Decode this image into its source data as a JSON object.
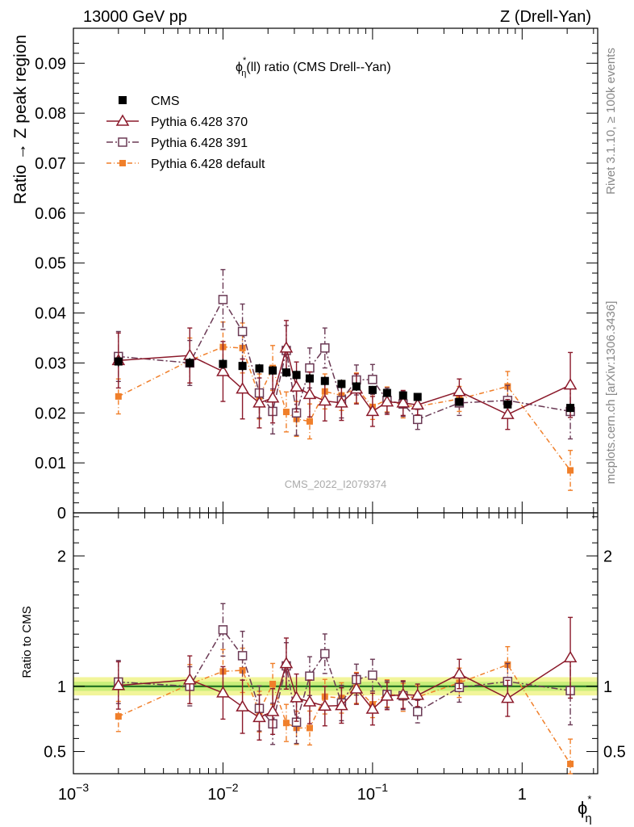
{
  "chart_data": {
    "type": "scatter",
    "header_left": "13000 GeV pp",
    "header_right": "Z (Drell-Yan)",
    "title": "ϕ*η(ll) ratio (CMS Drell--Yan)",
    "title_parts": {
      "phi": "ϕ",
      "sup": "*",
      "sub": "η",
      "rest": "(ll) ratio (CMS Drell--Yan)"
    },
    "ylabel": "Ratio → Z peak region",
    "ratio_ylabel": "Ratio to CMS",
    "xlabel": "ϕ*η",
    "xlabel_parts": {
      "phi": "ϕ",
      "sup": "*",
      "sub": "η"
    },
    "side_text_1": "Rivet 3.1.10, ≥ 100k events",
    "side_text_2": "mcplots.cern.ch [arXiv:1306.3436]",
    "watermark": "CMS_2022_I2079374",
    "xscale": "log",
    "xlim": [
      0.001,
      3.2
    ],
    "ylim": [
      0,
      0.097
    ],
    "ratio_ylim": [
      0.33,
      2.33
    ],
    "main_yticks": [
      {
        "v": 0.01,
        "label": "0.01"
      },
      {
        "v": 0.02,
        "label": "0.02"
      },
      {
        "v": 0.03,
        "label": "0.03"
      },
      {
        "v": 0.04,
        "label": "0.04"
      },
      {
        "v": 0.05,
        "label": "0.05"
      },
      {
        "v": 0.06,
        "label": "0.06"
      },
      {
        "v": 0.07,
        "label": "0.07"
      },
      {
        "v": 0.08,
        "label": "0.08"
      },
      {
        "v": 0.09,
        "label": "0.09"
      }
    ],
    "ratio_yticks": [
      {
        "v": 0.5,
        "label": "0.5"
      },
      {
        "v": 1,
        "label": "1"
      },
      {
        "v": 2,
        "label": "2"
      }
    ],
    "xticks": [
      {
        "v": 0.001,
        "base": "10",
        "exp": "−3"
      },
      {
        "v": 0.01,
        "base": "10",
        "exp": "−2"
      },
      {
        "v": 0.1,
        "base": "10",
        "exp": "−1"
      },
      {
        "v": 1,
        "base": "1",
        "exp": ""
      }
    ],
    "x": [
      0.002,
      0.006,
      0.01,
      0.0135,
      0.0175,
      0.0215,
      0.0265,
      0.031,
      0.038,
      0.048,
      0.062,
      0.078,
      0.1,
      0.125,
      0.16,
      0.2,
      0.38,
      0.8,
      2.1
    ],
    "x_err": [
      [
        0.001,
        0.004
      ],
      [
        0.004,
        0.008
      ],
      [
        0.008,
        0.012
      ],
      [
        0.012,
        0.015
      ],
      [
        0.015,
        0.02
      ],
      [
        0.02,
        0.023
      ],
      [
        0.023,
        0.029
      ],
      [
        0.029,
        0.034
      ],
      [
        0.034,
        0.043
      ],
      [
        0.043,
        0.054
      ],
      [
        0.054,
        0.07
      ],
      [
        0.07,
        0.087
      ],
      [
        0.087,
        0.114
      ],
      [
        0.114,
        0.14
      ],
      [
        0.14,
        0.18
      ],
      [
        0.18,
        0.25
      ],
      [
        0.25,
        0.6
      ],
      [
        0.6,
        1.3
      ],
      [
        1.3,
        3.2
      ]
    ],
    "data": {
      "name": "CMS",
      "values": [
        0.0303,
        0.03,
        0.0298,
        0.0294,
        0.0289,
        0.0285,
        0.0281,
        0.0276,
        0.0269,
        0.0264,
        0.0258,
        0.0253,
        0.0246,
        0.024,
        0.0235,
        0.0232,
        0.0222,
        0.0217,
        0.021
      ],
      "errors": [
        0.001,
        0.001,
        0.001,
        0.001,
        0.0009,
        0.0009,
        0.0009,
        0.0009,
        0.0009,
        0.0009,
        0.0009,
        0.0009,
        0.0008,
        0.0008,
        0.0008,
        0.0008,
        0.0008,
        0.0008,
        0.0009
      ]
    },
    "series": [
      {
        "name": "Pythia 6.428 370",
        "color": "#8b1a2b",
        "marker": "triangle",
        "dash": "",
        "values": [
          0.0305,
          0.0315,
          0.0283,
          0.0248,
          0.022,
          0.023,
          0.033,
          0.0252,
          0.0237,
          0.0224,
          0.022,
          0.0248,
          0.0203,
          0.0222,
          0.022,
          0.0216,
          0.0243,
          0.0197,
          0.0256
        ],
        "errors": [
          0.0055,
          0.0055,
          0.006,
          0.006,
          0.005,
          0.005,
          0.0055,
          0.005,
          0.0045,
          0.004,
          0.0035,
          0.003,
          0.003,
          0.0025,
          0.0025,
          0.002,
          0.0025,
          0.003,
          0.0065
        ]
      },
      {
        "name": "Pythia 6.428 391",
        "color": "#6b3a55",
        "marker": "square-open",
        "dash": "8,3,2,3",
        "values": [
          0.0313,
          0.03,
          0.0427,
          0.0363,
          0.024,
          0.0203,
          0.0325,
          0.02,
          0.029,
          0.033,
          0.0225,
          0.0266,
          0.0267,
          0.0225,
          0.0218,
          0.0187,
          0.022,
          0.0225,
          0.0203
        ],
        "errors": [
          0.005,
          0.0045,
          0.006,
          0.0055,
          0.005,
          0.0045,
          0.005,
          0.0045,
          0.004,
          0.004,
          0.0035,
          0.003,
          0.003,
          0.0025,
          0.0025,
          0.002,
          0.0025,
          0.003,
          0.0055
        ]
      },
      {
        "name": "Pythia 6.428 default",
        "color": "#f07f2a",
        "marker": "square-filled",
        "dash": "6,3,1,3",
        "values": [
          0.0233,
          0.0305,
          0.0332,
          0.033,
          0.0233,
          0.029,
          0.0202,
          0.0188,
          0.0183,
          0.0243,
          0.0235,
          0.025,
          0.0212,
          0.0227,
          0.0215,
          0.0213,
          0.0228,
          0.0253,
          0.0085
        ]
      }
    ],
    "series_errors_default": [
      0.0035,
      0.0045,
      0.005,
      0.005,
      0.0045,
      0.0045,
      0.004,
      0.0035,
      0.0035,
      0.0035,
      0.003,
      0.003,
      0.0025,
      0.0025,
      0.0025,
      0.002,
      0.0025,
      0.003,
      0.004
    ],
    "ratio_band_inner": 0.035,
    "ratio_band_outer": 0.07,
    "legend_position": "top-left"
  }
}
